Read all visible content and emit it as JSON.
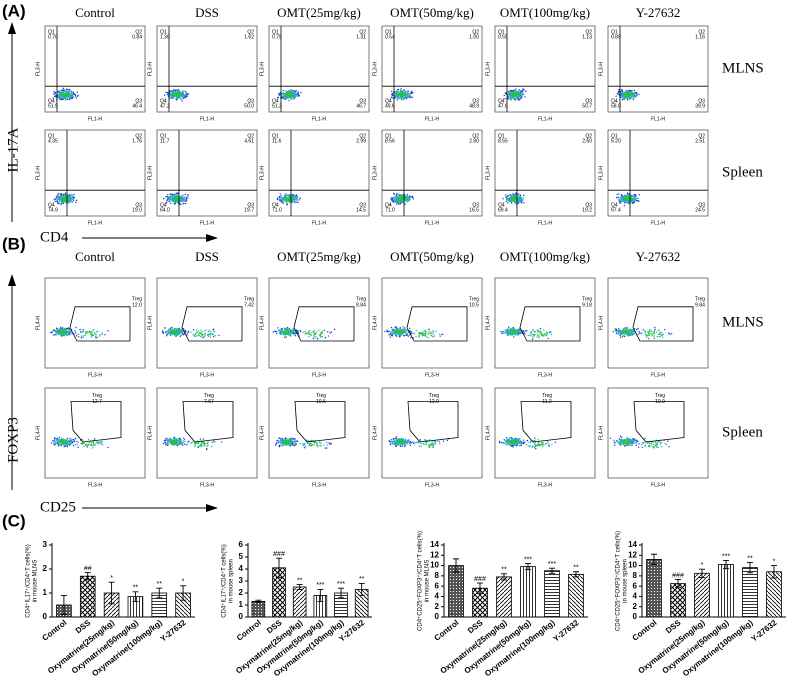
{
  "panel_labels": [
    "(A)",
    "(B)",
    "(C)"
  ],
  "panel_a": {
    "y_label": "IL-17A",
    "x_label": "CD4",
    "plot_x_label": "FL1-H",
    "plot_y_label": "FL3-H",
    "columns": [
      "Control",
      "DSS",
      "OMT(25mg/kg)",
      "OMT(50mg/kg)",
      "OMT(100mg/kg)",
      "Y-27632"
    ],
    "quadrant_names": [
      "Q1",
      "Q2",
      "Q3",
      "Q4"
    ],
    "rows": [
      {
        "name": "MLNS",
        "plots": [
          [
            "0.70",
            "0.84",
            "46.4",
            "51.9"
          ],
          [
            "1.30",
            "1.62",
            "50.0",
            "47.2"
          ],
          [
            "0.75",
            "1.31",
            "46.7",
            "51.3"
          ],
          [
            "0.54",
            "1.00",
            "48.9",
            "49.6"
          ],
          [
            "0.55",
            "1.13",
            "50.7",
            "47.6"
          ],
          [
            "0.89",
            "1.16",
            "39.9",
            "58.0"
          ]
        ]
      },
      {
        "name": "Spleen",
        "plots": [
          [
            "4.35",
            "1.76",
            "19.0",
            "74.9"
          ],
          [
            "11.7",
            "4.61",
            "19.7",
            "64.0"
          ],
          [
            "11.6",
            "2.99",
            "14.5",
            "71.0"
          ],
          [
            "8.56",
            "2.60",
            "16.5",
            "71.0"
          ],
          [
            "8.55",
            "2.60",
            "19.2",
            "69.4"
          ],
          [
            "5.20",
            "2.51",
            "24.5",
            "67.4"
          ]
        ]
      }
    ]
  },
  "panel_b": {
    "y_label": "FOXP3",
    "x_label": "CD25",
    "plot_x_label": "FL3-H",
    "plot_y_label": "FL4-H",
    "gate_label": "Treg",
    "columns": [
      "Control",
      "DSS",
      "OMT(25mg/kg)",
      "OMT(50mg/kg)",
      "OMT(100mg/kg)",
      "Y-27632"
    ],
    "rows": [
      {
        "name": "MLNS",
        "plots": [
          "12.0",
          "7.42",
          "8.84",
          "10.5",
          "9.18",
          "9.84"
        ]
      },
      {
        "name": "Spleen",
        "plots": [
          "12.7",
          "7.67",
          "10.5",
          "12.0",
          "11.2",
          "10.9"
        ]
      }
    ]
  },
  "chart_data": [
    {
      "type": "bar",
      "y_label": [
        "CD4⁺IL17⁺/CD4⁺T cells(%)",
        "in mouse MLNS"
      ],
      "categories": [
        "Control",
        "DSS",
        "Oxymatrine(25mg/kg)",
        "Oxymatrine(50mg/kg)",
        "Oxymatrine(100mg/kg)",
        "Y-27632"
      ],
      "values": [
        0.5,
        1.7,
        1.0,
        0.85,
        1.0,
        1.0
      ],
      "error": [
        0.4,
        0.15,
        0.45,
        0.2,
        0.2,
        0.3
      ],
      "annotations": [
        null,
        "##",
        "*",
        "**",
        "**",
        "*"
      ],
      "ylim": [
        0,
        3
      ],
      "yticks": [
        0,
        1,
        2,
        3
      ]
    },
    {
      "type": "bar",
      "y_label": [
        "CD4⁺IL17⁺/CD4⁺T cells(%)",
        "in mouse spleen"
      ],
      "categories": [
        "Control",
        "DSS",
        "Oxymatrine(25mg/kg)",
        "Oxymatrine(50mg/kg)",
        "Oxymatrine(100mg/kg)",
        "Y-27632"
      ],
      "values": [
        1.3,
        4.1,
        2.5,
        1.8,
        2.0,
        2.3
      ],
      "error": [
        0.1,
        0.8,
        0.2,
        0.5,
        0.4,
        0.5
      ],
      "annotations": [
        null,
        "###",
        "**",
        "***",
        "***",
        "**"
      ],
      "ylim": [
        0,
        6
      ],
      "yticks": [
        0,
        1,
        2,
        3,
        4,
        5,
        6
      ]
    },
    {
      "type": "bar",
      "y_label": [
        "CD4⁺CD25⁺FOXP3⁺/CD4⁺T cells(%)",
        "in mouse MLNS"
      ],
      "categories": [
        "Control",
        "DSS",
        "Oxymatrine(25mg/kg)",
        "Oxymatrine(50mg/kg)",
        "Oxymatrine(100mg/kg)",
        "Y-27632"
      ],
      "values": [
        10.0,
        5.6,
        7.8,
        9.8,
        9.0,
        8.3
      ],
      "error": [
        1.3,
        1.0,
        0.6,
        0.6,
        0.5,
        0.5
      ],
      "annotations": [
        null,
        "###",
        "**",
        "***",
        "***",
        "**"
      ],
      "ylim": [
        0,
        14
      ],
      "yticks": [
        0,
        2,
        4,
        6,
        8,
        10,
        12,
        14
      ]
    },
    {
      "type": "bar",
      "y_label": [
        "CD4⁺CD25⁺FOXP3⁺/CD4⁺T cells(%)",
        "in mouse spleen"
      ],
      "categories": [
        "Control",
        "DSS",
        "Oxymatrine(25mg/kg)",
        "Oxymatrine(50mg/kg)",
        "Oxymatrine(100mg/kg)",
        "Y-27632"
      ],
      "values": [
        11.2,
        6.5,
        8.5,
        10.2,
        9.6,
        8.8
      ],
      "error": [
        1.0,
        0.8,
        0.8,
        0.8,
        1.0,
        1.2
      ],
      "annotations": [
        null,
        "###",
        "*",
        "***",
        "**",
        "*"
      ],
      "ylim": [
        0,
        14
      ],
      "yticks": [
        0,
        2,
        4,
        6,
        8,
        10,
        12,
        14
      ]
    }
  ]
}
